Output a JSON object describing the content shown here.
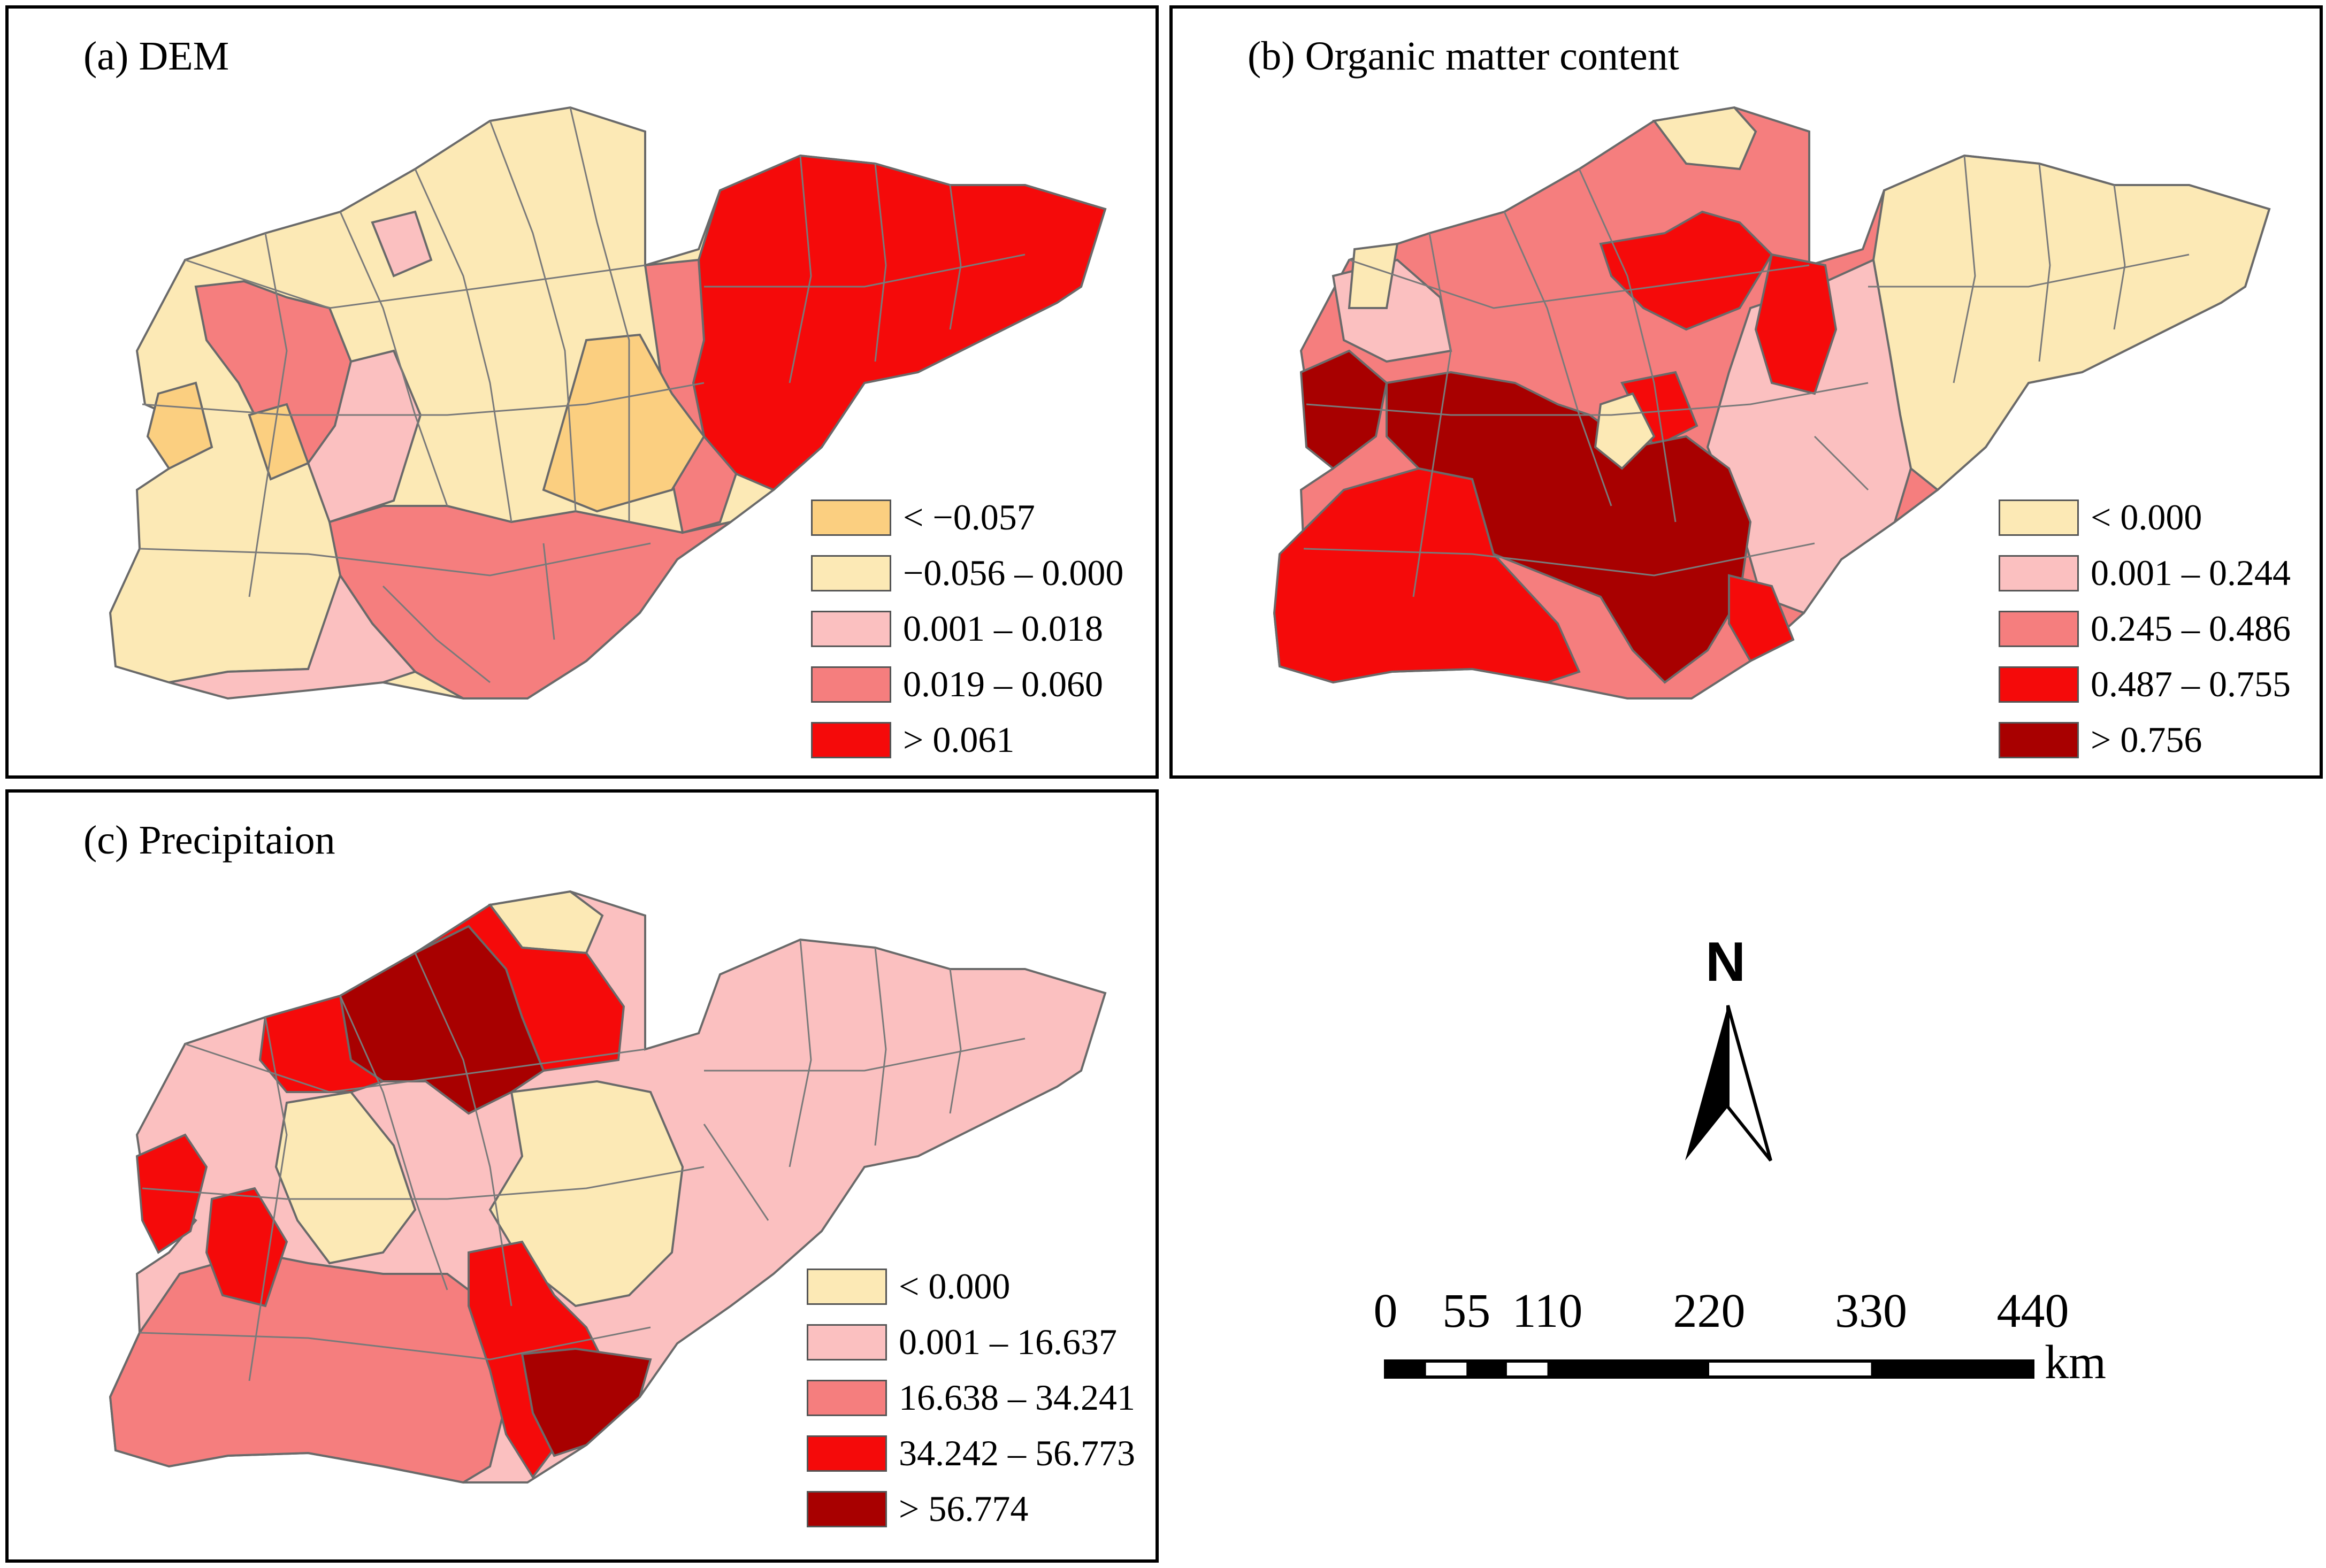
{
  "panels": {
    "a": {
      "title": "(a) DEM",
      "legend": [
        {
          "label": "< −0.057",
          "color": "#FBCF80"
        },
        {
          "label": "−0.056 – 0.000",
          "color": "#FCE9B5"
        },
        {
          "label": "0.001 – 0.018",
          "color": "#FBC0C0"
        },
        {
          "label": "0.019 – 0.060",
          "color": "#F57E7E"
        },
        {
          "label": "> 0.061",
          "color": "#F50A0A"
        }
      ]
    },
    "b": {
      "title": "(b) Organic matter content",
      "legend": [
        {
          "label": "< 0.000",
          "color": "#FCE9B5"
        },
        {
          "label": "0.001 – 0.244",
          "color": "#FBC0C0"
        },
        {
          "label": "0.245 – 0.486",
          "color": "#F57E7E"
        },
        {
          "label": "0.487 – 0.755",
          "color": "#F50A0A"
        },
        {
          "label": "> 0.756",
          "color": "#A80000"
        }
      ]
    },
    "c": {
      "title": "(c) Precipitaion",
      "legend": [
        {
          "label": "< 0.000",
          "color": "#FCE9B5"
        },
        {
          "label": "0.001 – 16.637",
          "color": "#FBC0C0"
        },
        {
          "label": "16.638 – 34.241",
          "color": "#F57E7E"
        },
        {
          "label": "34.242 – 56.773",
          "color": "#F50A0A"
        },
        {
          "label": "> 56.774",
          "color": "#A80000"
        }
      ]
    }
  },
  "north_arrow": {
    "label": "N"
  },
  "scale_bar": {
    "ticks": [
      "0",
      "55",
      "110",
      "220",
      "330",
      "440"
    ],
    "tick_values": [
      0,
      55,
      110,
      220,
      330,
      440
    ],
    "unit": "km"
  }
}
